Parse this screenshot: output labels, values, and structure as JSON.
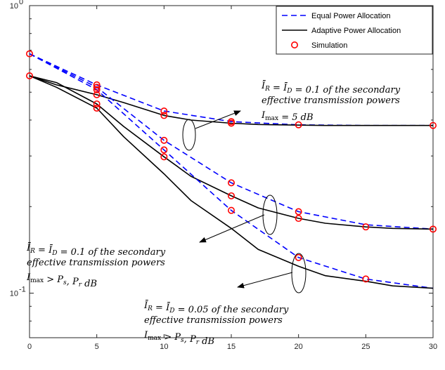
{
  "chart_data": {
    "type": "line",
    "x_ticks": [
      0,
      5,
      10,
      15,
      20,
      25,
      30
    ],
    "y_ticks": [
      {
        "value": 0.1,
        "label": "10",
        "exp": "-1"
      },
      {
        "value": 1.0,
        "label": "10",
        "exp": "0"
      }
    ],
    "xlim": [
      0,
      30
    ],
    "ylim": [
      0.07,
      1.0
    ],
    "yscale": "log",
    "grid": false,
    "legend_position": "top-right",
    "legend": [
      {
        "label": "Equal Power Allocation",
        "style": "dashed",
        "color": "#0000ff"
      },
      {
        "label": "Adaptive Power Allocation",
        "style": "solid",
        "color": "#000000"
      },
      {
        "label": "Simulation",
        "style": "marker",
        "color": "#ff0000"
      }
    ],
    "series": [
      {
        "group": "case1",
        "kind": "equal",
        "x": [
          0,
          5,
          10,
          15,
          20,
          25,
          30
        ],
        "y": [
          0.68,
          0.53,
          0.43,
          0.395,
          0.385,
          0.383,
          0.383
        ]
      },
      {
        "group": "case1",
        "kind": "adaptive",
        "x": [
          0,
          2,
          5,
          7,
          10,
          12,
          15,
          17,
          20,
          22,
          25,
          27,
          30
        ],
        "y": [
          0.57,
          0.53,
          0.49,
          0.46,
          0.415,
          0.4,
          0.39,
          0.386,
          0.384,
          0.383,
          0.383,
          0.383,
          0.383
        ]
      },
      {
        "group": "case2",
        "kind": "equal",
        "x": [
          0,
          5,
          10,
          15,
          20,
          25,
          30
        ],
        "y": [
          0.68,
          0.52,
          0.34,
          0.242,
          0.192,
          0.173,
          0.167
        ]
      },
      {
        "group": "case2",
        "kind": "adaptive",
        "x": [
          0,
          2,
          5,
          7,
          10,
          12,
          15,
          17,
          20,
          22,
          25,
          27,
          30
        ],
        "y": [
          0.57,
          0.54,
          0.455,
          0.38,
          0.298,
          0.255,
          0.218,
          0.198,
          0.182,
          0.175,
          0.17,
          0.168,
          0.167
        ]
      },
      {
        "group": "case3",
        "kind": "equal",
        "x": [
          0,
          5,
          10,
          15,
          20,
          25,
          30
        ],
        "y": [
          0.68,
          0.51,
          0.315,
          0.194,
          0.133,
          0.112,
          0.104
        ]
      },
      {
        "group": "case3",
        "kind": "adaptive",
        "x": [
          0,
          2,
          5,
          7,
          10,
          12,
          15,
          17,
          20,
          22,
          25,
          27,
          30
        ],
        "y": [
          0.57,
          0.52,
          0.44,
          0.35,
          0.26,
          0.21,
          0.168,
          0.142,
          0.124,
          0.115,
          0.11,
          0.106,
          0.104
        ]
      }
    ],
    "simulation": {
      "x": [
        0,
        0,
        5,
        5,
        5,
        5,
        5,
        5,
        10,
        10,
        10,
        10,
        10,
        15,
        15,
        15,
        15,
        15,
        20,
        20,
        20,
        20,
        25,
        25,
        30,
        30
      ],
      "y": [
        0.68,
        0.57,
        0.53,
        0.52,
        0.51,
        0.49,
        0.455,
        0.44,
        0.43,
        0.415,
        0.34,
        0.315,
        0.298,
        0.395,
        0.39,
        0.242,
        0.218,
        0.194,
        0.385,
        0.192,
        0.182,
        0.133,
        0.112,
        0.17,
        0.383,
        0.167
      ]
    },
    "annotations": [
      {
        "lines": [
          "Ī_R = Ī_D = 0.1 of the secondary",
          "effective transmission powers",
          "I_max = 5 dB"
        ]
      },
      {
        "lines": [
          "Ī_R = Ī_D = 0.1 of the secondary",
          "effective transmission powers",
          "I_max > P_s, P_r dB"
        ]
      },
      {
        "lines": [
          "Ī_R = Ī_D = 0.05 of the secondary",
          "effective transmission powers",
          "I_max > P_s, P_r dB"
        ]
      }
    ]
  }
}
